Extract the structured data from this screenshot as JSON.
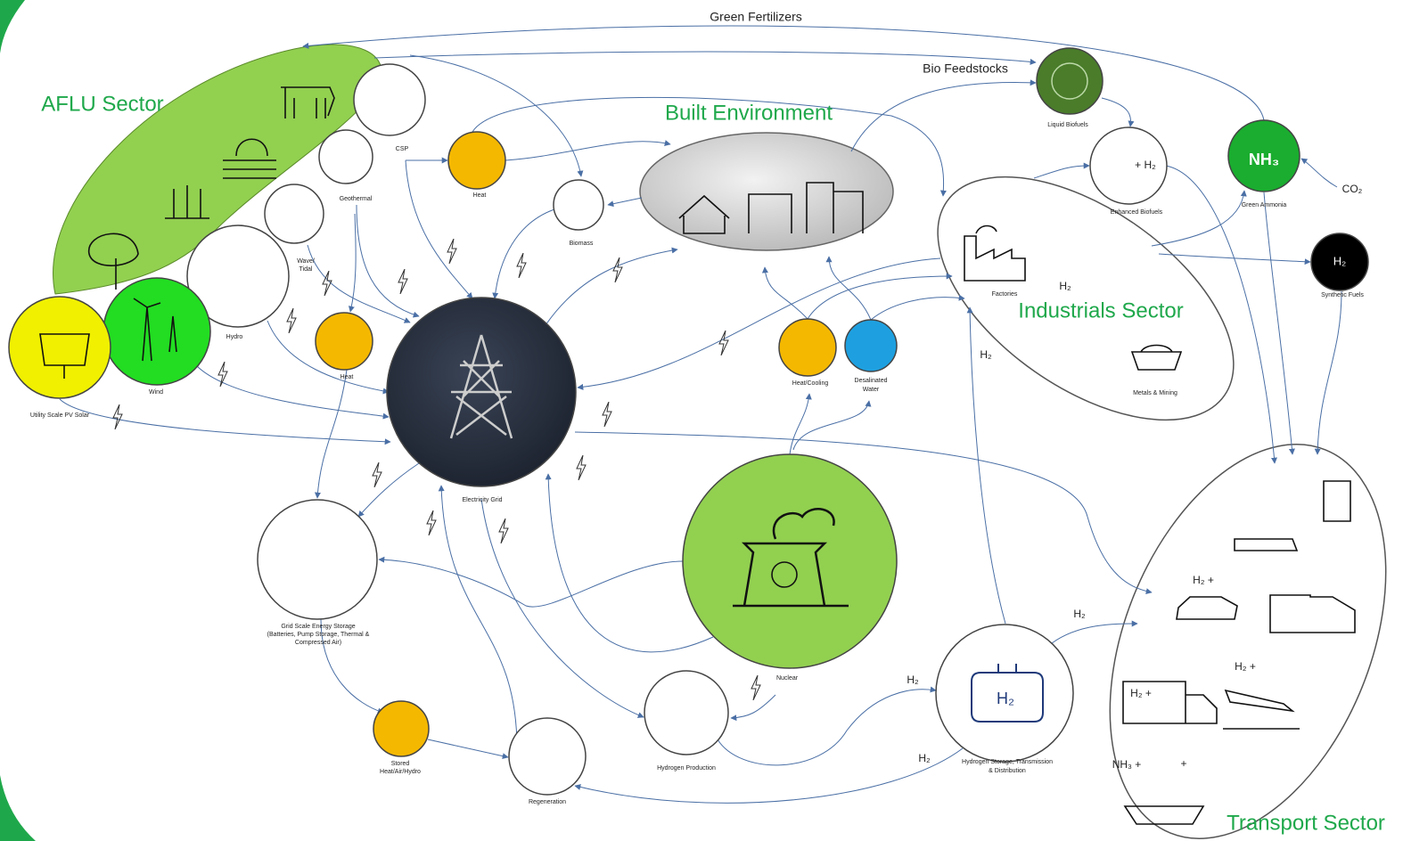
{
  "sectors": [
    {
      "label": "AFLU Sector"
    },
    {
      "label": "Built Environment"
    },
    {
      "label": "Industrials Sector"
    },
    {
      "label": "Transport Sector"
    }
  ],
  "nodes": [
    {
      "lines": [
        "CSP"
      ]
    },
    {
      "lines": [
        "Geothermal"
      ]
    },
    {
      "lines": [
        "Wave/",
        "Tidal"
      ]
    },
    {
      "lines": [
        "Hydro"
      ]
    },
    {
      "lines": [
        "Wind"
      ]
    },
    {
      "lines": [
        "Utility Scale PV Solar"
      ]
    },
    {
      "lines": [
        "Heat"
      ]
    },
    {
      "lines": [
        "Heat"
      ]
    },
    {
      "lines": [
        "Biomass"
      ]
    },
    {
      "lines": [
        "Electricity Grid"
      ]
    },
    {
      "lines": [
        "Liquid Biofuels"
      ]
    },
    {
      "lines": [
        "Enhanced Biofuels"
      ]
    },
    {
      "lines": [
        "Green Ammonia"
      ]
    },
    {
      "lines": [
        "Synthetic Fuels"
      ]
    },
    {
      "lines": [
        "Factories"
      ]
    },
    {
      "lines": [
        "Metals & Mining"
      ]
    },
    {
      "lines": [
        "Heat/Cooling"
      ]
    },
    {
      "lines": [
        "Desalinated",
        "Water"
      ]
    },
    {
      "lines": [
        "Nuclear"
      ]
    },
    {
      "lines": [
        "Grid Scale Energy Storage",
        "(Batteries, Pump Storage, Thermal &",
        "Compressed Air)"
      ]
    },
    {
      "lines": [
        "Stored",
        "Heat/Air/Hydro"
      ]
    },
    {
      "lines": [
        "Regeneration"
      ]
    },
    {
      "lines": [
        "Hydrogen Production"
      ]
    },
    {
      "lines": [
        "Hydrogen Storage, Transmission",
        "& Distribution"
      ]
    }
  ],
  "flows": [
    "Green Fertilizers",
    "Bio Feedstocks",
    "H₂",
    "H₂",
    "H₂",
    "H₂",
    "H₂",
    "CO₂"
  ],
  "icon_texts": [
    "NH₃",
    "H₂",
    "+ H₂",
    "H₂",
    "H₂ +",
    "H₂ +",
    "H₂ +",
    "NH₃ +",
    "+"
  ]
}
